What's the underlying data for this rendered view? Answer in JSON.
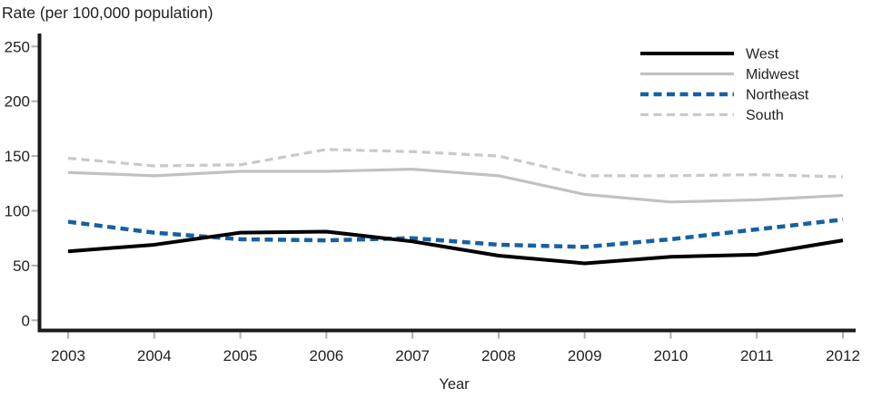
{
  "page": {
    "background": "#ffffff",
    "text_color": "#231f20"
  },
  "chart_data": {
    "type": "line",
    "title": "Rate (per 100,000 population)",
    "xlabel": "Year",
    "ylabel": "Rate (per 100,000 population)",
    "x": [
      2003,
      2004,
      2005,
      2006,
      2007,
      2008,
      2009,
      2010,
      2011,
      2012
    ],
    "x_tick_labels": [
      "2003",
      "2004",
      "2005",
      "2006",
      "2007",
      "2008",
      "2009",
      "2010",
      "2011",
      "2012"
    ],
    "y_ticks": [
      0,
      50,
      100,
      150,
      200,
      250
    ],
    "y_tick_labels": [
      "0",
      "50",
      "100",
      "150",
      "200",
      "250"
    ],
    "ylim": [
      0,
      260
    ],
    "grid": false,
    "legend_position": "top-right",
    "axis_color": "#1a1a1a",
    "tick_color": "#b0b0b3",
    "series": [
      {
        "name": "West",
        "color": "#000000",
        "style": "solid",
        "width": 4,
        "values": [
          63,
          69,
          80,
          81,
          72,
          59,
          52,
          58,
          60,
          73
        ]
      },
      {
        "name": "Midwest",
        "color": "#c1c1c3",
        "style": "solid",
        "width": 3.2,
        "values": [
          135,
          132,
          136,
          136,
          138,
          132,
          115,
          108,
          110,
          114
        ]
      },
      {
        "name": "Northeast",
        "color": "#1660a5",
        "style": "dashed",
        "width": 4.5,
        "values": [
          90,
          80,
          74,
          73,
          75,
          69,
          67,
          74,
          83,
          92
        ]
      },
      {
        "name": "South",
        "color": "#c9c9cb",
        "style": "dashed",
        "width": 3.2,
        "values": [
          148,
          141,
          142,
          156,
          154,
          150,
          132,
          132,
          133,
          131
        ]
      }
    ]
  }
}
